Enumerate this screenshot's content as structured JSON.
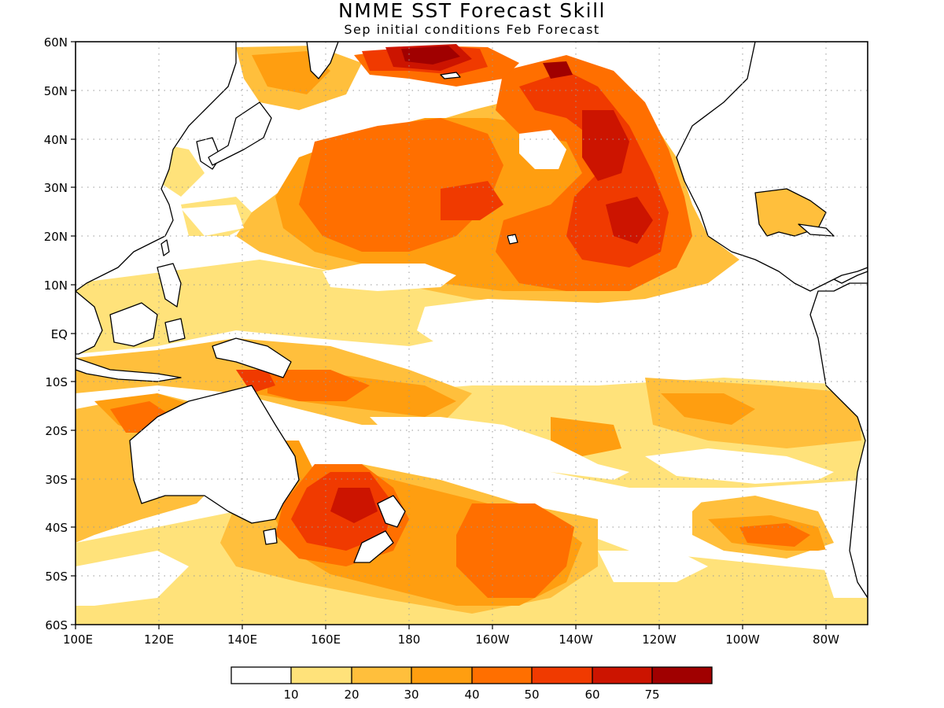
{
  "title": "NMME SST Forecast Skill",
  "subtitle": "Sep initial conditions  Feb Forecast",
  "map": {
    "lon_range": [
      100,
      290
    ],
    "lat_range": [
      -60,
      60
    ],
    "y_ticks": [
      "60N",
      "50N",
      "40N",
      "30N",
      "20N",
      "10N",
      "EQ",
      "10S",
      "20S",
      "30S",
      "40S",
      "50S",
      "60S"
    ],
    "x_ticks": [
      "100E",
      "120E",
      "140E",
      "160E",
      "180",
      "160W",
      "140W",
      "120W",
      "100W",
      "80W"
    ],
    "grid": "dotted"
  },
  "colorbar": {
    "labels": [
      "10",
      "20",
      "30",
      "40",
      "50",
      "60",
      "75"
    ],
    "colors": [
      "#ffffff",
      "#ffe27a",
      "#ffbf3c",
      "#ff9e10",
      "#ff6f00",
      "#f03a00",
      "#cc1400",
      "#a00000"
    ]
  }
}
